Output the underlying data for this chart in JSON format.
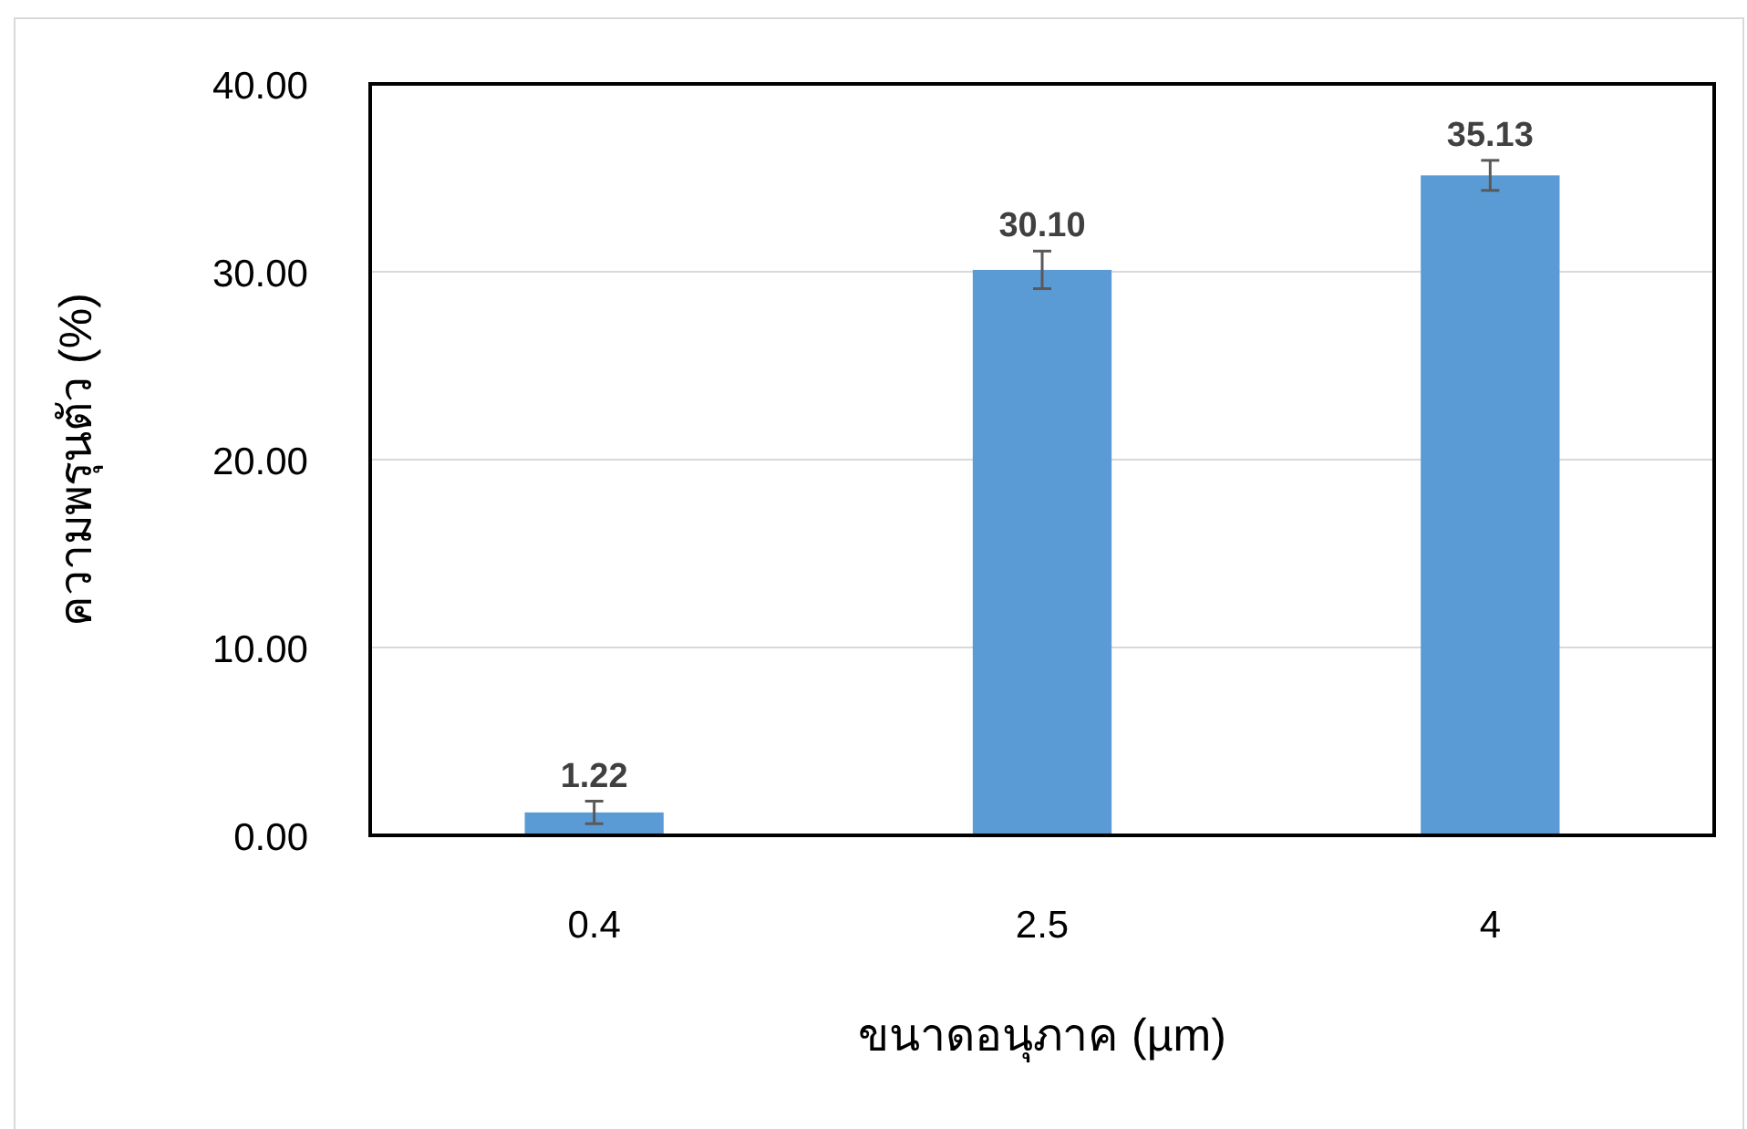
{
  "chart_data": {
    "type": "bar",
    "xlabel": "ขนาดอนุภาค (µm)",
    "ylabel": "ความพรุนตัว (%)",
    "categories": [
      "0.4",
      "2.5",
      "4"
    ],
    "values": [
      1.22,
      30.1,
      35.13
    ],
    "value_labels": [
      "1.22",
      "30.10",
      "35.13"
    ],
    "errors": [
      0.6,
      1.0,
      0.8
    ],
    "color": "#5b9bd5",
    "ylim": [
      0,
      40
    ],
    "yticks": [
      {
        "value": 0,
        "label": "0.00"
      },
      {
        "value": 10,
        "label": "10.00"
      },
      {
        "value": 20,
        "label": "20.00"
      },
      {
        "value": 30,
        "label": "30.00"
      },
      {
        "value": 40,
        "label": "40.00"
      }
    ],
    "grid": "y"
  }
}
